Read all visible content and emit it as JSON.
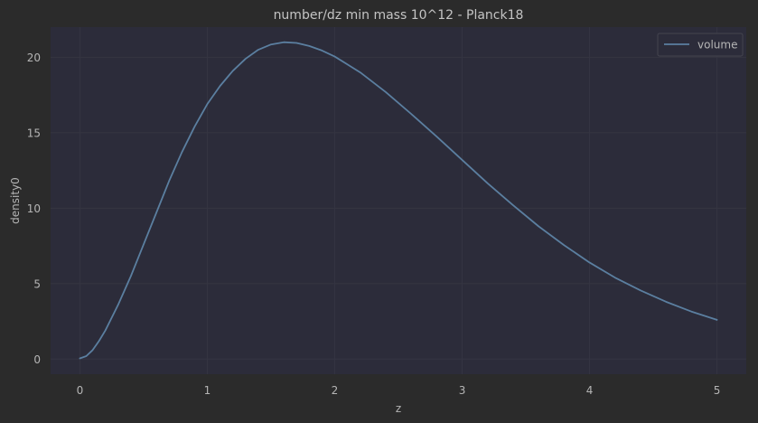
{
  "colors": {
    "figure_background": "#2b2b2b",
    "plot_background": "#2c2c3a",
    "grid": "#353542",
    "series_line": "#5b7fa0",
    "text": "#b5b5b5"
  },
  "chart_data": {
    "type": "line",
    "title": "number/dz min mass 10^12 - Planck18",
    "xlabel": "z",
    "ylabel": "density0",
    "xlim": [
      -0.23,
      5.23
    ],
    "ylim": [
      -1.0,
      22.0
    ],
    "xticks": [
      0,
      1,
      2,
      3,
      4,
      5
    ],
    "yticks": [
      0,
      5,
      10,
      15,
      20
    ],
    "grid": true,
    "legend_position": "top-right",
    "series": [
      {
        "name": "volume",
        "x": [
          0.0,
          0.05,
          0.1,
          0.15,
          0.2,
          0.3,
          0.4,
          0.5,
          0.6,
          0.7,
          0.8,
          0.9,
          1.0,
          1.1,
          1.2,
          1.3,
          1.4,
          1.5,
          1.6,
          1.7,
          1.8,
          1.9,
          2.0,
          2.2,
          2.4,
          2.6,
          2.8,
          3.0,
          3.2,
          3.4,
          3.6,
          3.8,
          4.0,
          4.2,
          4.4,
          4.6,
          4.8,
          5.0
        ],
        "y": [
          0.05,
          0.2,
          0.6,
          1.2,
          1.9,
          3.6,
          5.5,
          7.6,
          9.7,
          11.8,
          13.7,
          15.4,
          16.9,
          18.1,
          19.1,
          19.9,
          20.5,
          20.85,
          21.0,
          20.95,
          20.75,
          20.45,
          20.05,
          19.0,
          17.7,
          16.25,
          14.75,
          13.2,
          11.65,
          10.2,
          8.8,
          7.55,
          6.4,
          5.4,
          4.55,
          3.8,
          3.15,
          2.6
        ]
      }
    ]
  }
}
